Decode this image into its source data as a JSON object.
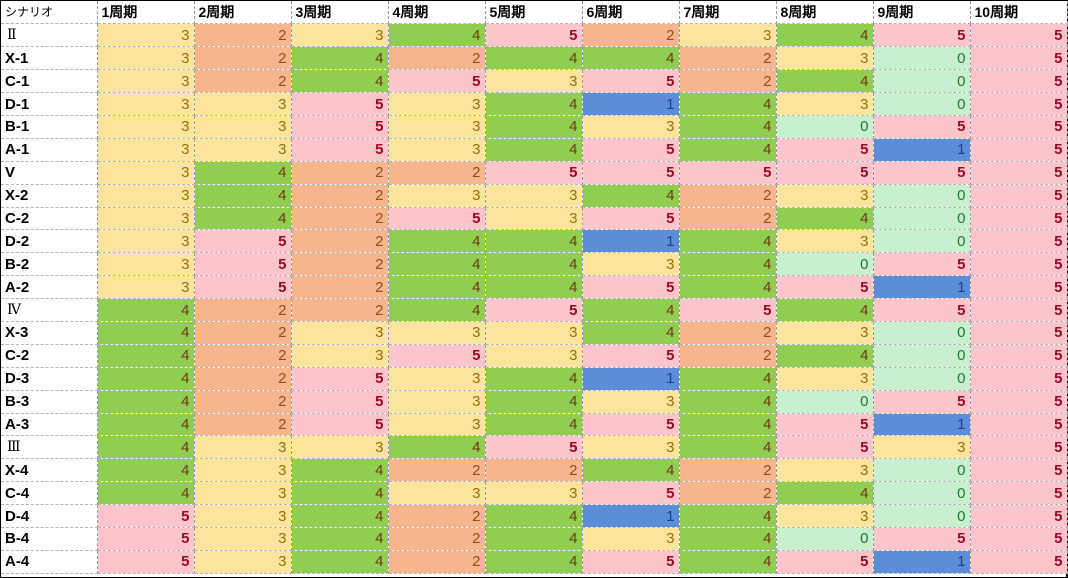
{
  "corner_label": "シナリオ",
  "columns": [
    "1周期",
    "2周期",
    "3周期",
    "4周期",
    "5周期",
    "6周期",
    "7周期",
    "8周期",
    "9周期",
    "10周期"
  ],
  "rows": [
    {
      "label": "Ⅱ",
      "roman": true,
      "values": [
        3,
        2,
        3,
        4,
        5,
        2,
        3,
        4,
        5,
        5
      ]
    },
    {
      "label": "X-1",
      "roman": false,
      "values": [
        3,
        2,
        4,
        2,
        4,
        4,
        2,
        3,
        0,
        5
      ]
    },
    {
      "label": "C-1",
      "roman": false,
      "values": [
        3,
        2,
        4,
        5,
        3,
        5,
        2,
        4,
        0,
        5
      ]
    },
    {
      "label": "D-1",
      "roman": false,
      "values": [
        3,
        3,
        5,
        3,
        4,
        1,
        4,
        3,
        0,
        5
      ]
    },
    {
      "label": "B-1",
      "roman": false,
      "values": [
        3,
        3,
        5,
        3,
        4,
        3,
        4,
        0,
        5,
        5
      ]
    },
    {
      "label": "A-1",
      "roman": false,
      "values": [
        3,
        3,
        5,
        3,
        4,
        5,
        4,
        5,
        1,
        5
      ]
    },
    {
      "label": "V",
      "roman": false,
      "values": [
        3,
        4,
        2,
        2,
        5,
        5,
        5,
        5,
        5,
        5
      ]
    },
    {
      "label": "X-2",
      "roman": false,
      "values": [
        3,
        4,
        2,
        3,
        3,
        4,
        2,
        3,
        0,
        5
      ]
    },
    {
      "label": "C-2",
      "roman": false,
      "values": [
        3,
        4,
        2,
        5,
        3,
        5,
        2,
        4,
        0,
        5
      ]
    },
    {
      "label": "D-2",
      "roman": false,
      "values": [
        3,
        5,
        2,
        4,
        4,
        1,
        4,
        3,
        0,
        5
      ]
    },
    {
      "label": "B-2",
      "roman": false,
      "values": [
        3,
        5,
        2,
        4,
        4,
        3,
        4,
        0,
        5,
        5
      ]
    },
    {
      "label": "A-2",
      "roman": false,
      "values": [
        3,
        5,
        2,
        4,
        4,
        5,
        4,
        5,
        1,
        5
      ]
    },
    {
      "label": "Ⅳ",
      "roman": true,
      "values": [
        4,
        2,
        2,
        4,
        5,
        4,
        5,
        4,
        5,
        5
      ]
    },
    {
      "label": "X-3",
      "roman": false,
      "values": [
        4,
        2,
        3,
        3,
        3,
        4,
        2,
        3,
        0,
        5
      ]
    },
    {
      "label": "C-2",
      "roman": false,
      "values": [
        4,
        2,
        3,
        5,
        3,
        5,
        2,
        4,
        0,
        5
      ]
    },
    {
      "label": "D-3",
      "roman": false,
      "values": [
        4,
        2,
        5,
        3,
        4,
        1,
        4,
        3,
        0,
        5
      ]
    },
    {
      "label": "B-3",
      "roman": false,
      "values": [
        4,
        2,
        5,
        3,
        4,
        3,
        4,
        0,
        5,
        5
      ]
    },
    {
      "label": "A-3",
      "roman": false,
      "values": [
        4,
        2,
        5,
        3,
        4,
        5,
        4,
        5,
        1,
        5
      ]
    },
    {
      "label": "Ⅲ",
      "roman": true,
      "values": [
        4,
        3,
        3,
        4,
        5,
        3,
        4,
        5,
        3,
        5
      ]
    },
    {
      "label": "X-4",
      "roman": false,
      "values": [
        4,
        3,
        4,
        2,
        2,
        4,
        2,
        3,
        0,
        5
      ]
    },
    {
      "label": "C-4",
      "roman": false,
      "values": [
        4,
        3,
        4,
        3,
        3,
        5,
        2,
        4,
        0,
        5
      ]
    },
    {
      "label": "D-4",
      "roman": false,
      "values": [
        5,
        3,
        4,
        2,
        4,
        1,
        4,
        3,
        0,
        5
      ]
    },
    {
      "label": "B-4",
      "roman": false,
      "values": [
        5,
        3,
        4,
        2,
        4,
        3,
        4,
        0,
        5,
        5
      ]
    },
    {
      "label": "A-4",
      "roman": false,
      "values": [
        5,
        3,
        4,
        2,
        4,
        5,
        4,
        5,
        1,
        5
      ]
    }
  ],
  "value_colors": {
    "0": {
      "bg": "#c8efce",
      "fg": "#1e7a2c"
    },
    "1": {
      "bg": "#5b8ed6",
      "fg": "#1e3d8a"
    },
    "2": {
      "bg": "#f5b58d",
      "fg": "#9a4a18"
    },
    "3": {
      "bg": "#fce49c",
      "fg": "#9b6d0c"
    },
    "4": {
      "bg": "#91cd51",
      "fg": "#6b3a10"
    },
    "5": {
      "bg": "#fcc5cc",
      "fg": "#9c0a26"
    }
  }
}
